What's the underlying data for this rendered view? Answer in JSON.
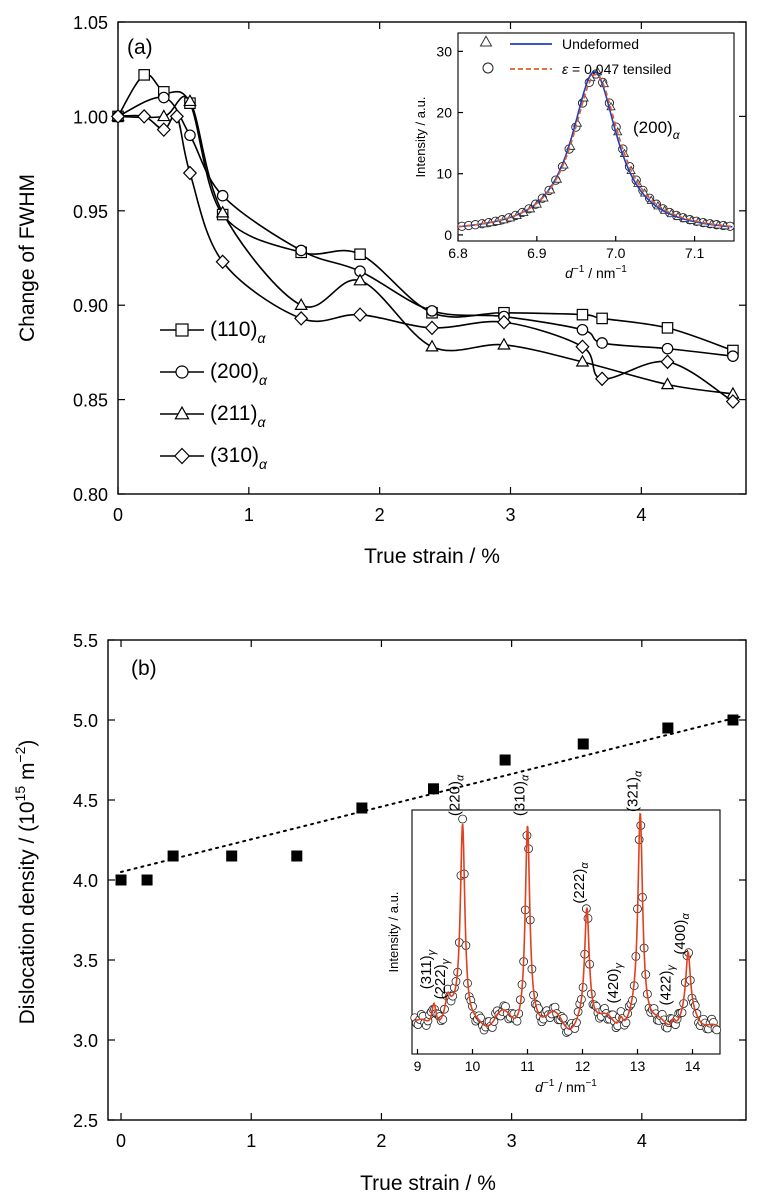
{
  "chart_data": [
    {
      "panel_label": "(a)",
      "type": "line",
      "xlabel": "True strain / %",
      "ylabel": "Change of FWHM",
      "xlim": [
        0,
        4.8
      ],
      "ylim": [
        0.8,
        1.05
      ],
      "xticks": [
        "0",
        "1",
        "2",
        "3",
        "4"
      ],
      "yticks": [
        "0.80",
        "0.85",
        "0.90",
        "0.95",
        "1.00",
        "1.05"
      ],
      "legend_position": "left-middle",
      "series": [
        {
          "name": "(110)",
          "sub": "α",
          "marker": "square",
          "x": [
            0,
            0.2,
            0.35,
            0.55,
            0.8,
            1.4,
            1.85,
            2.4,
            2.95,
            3.55,
            3.7,
            4.2,
            4.7
          ],
          "y": [
            1.0,
            1.022,
            1.013,
            1.007,
            0.948,
            0.928,
            0.927,
            0.896,
            0.896,
            0.895,
            0.893,
            0.888,
            0.876
          ]
        },
        {
          "name": "(200)",
          "sub": "α",
          "marker": "circle",
          "x": [
            0,
            0.35,
            0.55,
            0.8,
            1.4,
            1.85,
            2.4,
            2.95,
            3.55,
            3.7,
            4.2,
            4.7
          ],
          "y": [
            1.0,
            1.01,
            0.99,
            0.958,
            0.929,
            0.918,
            0.897,
            0.894,
            0.887,
            0.88,
            0.877,
            0.873
          ]
        },
        {
          "name": "(211)",
          "sub": "α",
          "marker": "triangle",
          "x": [
            0,
            0.35,
            0.55,
            0.8,
            1.4,
            1.85,
            2.4,
            2.95,
            3.55,
            4.2,
            4.7
          ],
          "y": [
            1.0,
            1.0,
            1.008,
            0.949,
            0.9,
            0.913,
            0.878,
            0.879,
            0.87,
            0.858,
            0.853
          ]
        },
        {
          "name": "(310)",
          "sub": "α",
          "marker": "diamond",
          "x": [
            0,
            0.2,
            0.35,
            0.45,
            0.55,
            0.8,
            1.4,
            1.85,
            2.4,
            2.95,
            3.55,
            3.7,
            4.2,
            4.7
          ],
          "y": [
            1.0,
            1.0,
            0.993,
            1.0,
            0.97,
            0.923,
            0.893,
            0.895,
            0.888,
            0.891,
            0.878,
            0.861,
            0.87,
            0.849
          ]
        }
      ],
      "inset": {
        "type": "line",
        "xlabel_base": "d",
        "xlabel_sup": "−1",
        "xlabel_unit": " / nm",
        "xlabel_unit_sup": "−1",
        "ylabel": "Intensity / a.u.",
        "xlim": [
          6.8,
          7.15
        ],
        "ylim": [
          -1,
          33
        ],
        "xticks": [
          "6.8",
          "6.9",
          "7.0",
          "7.1"
        ],
        "yticks": [
          "0",
          "10",
          "20",
          "30"
        ],
        "annotation": "(200)",
        "annotation_sub": "α",
        "legend": [
          {
            "label": "Undeformed",
            "color": "#1f3fbf",
            "marker": "triangle",
            "style": "solid"
          },
          {
            "label_prefix": "ε",
            "label": " = 0.047 tensiled",
            "color": "#e05a2b",
            "marker": "circle",
            "style": "dashed"
          }
        ],
        "peak_center": 6.975,
        "peak_height": 26,
        "peak_hwhm": 0.036
      }
    },
    {
      "panel_label": "(b)",
      "type": "scatter",
      "xlabel": "True strain / %",
      "ylabel_main": "Dislocation density / (10",
      "ylabel_sup": "15",
      "ylabel_mid": " m",
      "ylabel_sup2": "−2",
      "ylabel_end": ")",
      "xlim": [
        -0.1,
        4.8
      ],
      "ylim": [
        2.5,
        5.5
      ],
      "xticks": [
        "0",
        "1",
        "2",
        "3",
        "4"
      ],
      "yticks": [
        "2.5",
        "3.0",
        "3.5",
        "4.0",
        "4.5",
        "5.0",
        "5.5"
      ],
      "x": [
        0,
        0.2,
        0.4,
        0.85,
        1.35,
        1.85,
        2.4,
        2.95,
        3.55,
        4.2,
        4.7
      ],
      "y": [
        4.0,
        4.0,
        4.15,
        4.15,
        4.15,
        4.45,
        4.57,
        4.75,
        4.85,
        4.95,
        5.0
      ],
      "trendline": {
        "x": [
          0,
          4.75
        ],
        "y": [
          4.05,
          5.02
        ]
      },
      "inset": {
        "type": "line",
        "xlabel_base": "d",
        "xlabel_sup": "−1",
        "xlabel_unit": " / nm",
        "xlabel_unit_sup": "−1",
        "ylabel": "Intensity / a.u.",
        "xlim": [
          8.9,
          14.5
        ],
        "xticks": [
          "9",
          "10",
          "11",
          "12",
          "13",
          "14"
        ],
        "peaks": [
          {
            "label": "(311)",
            "sub": "γ",
            "x": 9.3,
            "h": 0.13
          },
          {
            "label": "(222)",
            "sub": "γ",
            "x": 9.55,
            "h": 0.08
          },
          {
            "label": "(220)",
            "sub": "α",
            "x": 9.82,
            "h": 0.98
          },
          {
            "label": "(310)",
            "sub": "α",
            "x": 11.0,
            "h": 0.98
          },
          {
            "label": "(222)",
            "sub": "α",
            "x": 12.08,
            "h": 0.55
          },
          {
            "label": "(420)",
            "sub": "γ",
            "x": 12.7,
            "h": 0.06
          },
          {
            "label": "(321)",
            "sub": "α",
            "x": 13.05,
            "h": 1.0
          },
          {
            "label": "(422)",
            "sub": "γ",
            "x": 13.65,
            "h": 0.05
          },
          {
            "label": "(400)",
            "sub": "α",
            "x": 13.92,
            "h": 0.3
          }
        ]
      }
    }
  ]
}
